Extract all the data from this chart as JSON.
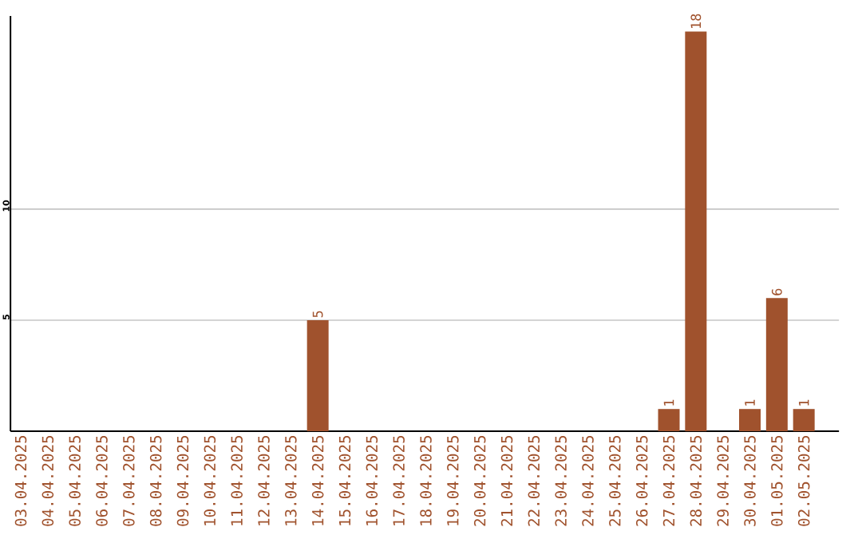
{
  "chart_data": {
    "type": "bar",
    "categories": [
      "03.04.2025",
      "04.04.2025",
      "05.04.2025",
      "06.04.2025",
      "07.04.2025",
      "08.04.2025",
      "09.04.2025",
      "10.04.2025",
      "11.04.2025",
      "12.04.2025",
      "13.04.2025",
      "14.04.2025",
      "15.04.2025",
      "16.04.2025",
      "17.04.2025",
      "18.04.2025",
      "19.04.2025",
      "20.04.2025",
      "21.04.2025",
      "22.04.2025",
      "23.04.2025",
      "24.04.2025",
      "25.04.2025",
      "26.04.2025",
      "27.04.2025",
      "28.04.2025",
      "29.04.2025",
      "30.04.2025",
      "01.05.2025",
      "02.05.2025"
    ],
    "values": [
      0,
      0,
      0,
      0,
      0,
      0,
      0,
      0,
      0,
      0,
      0,
      5,
      0,
      0,
      0,
      0,
      0,
      0,
      0,
      0,
      0,
      0,
      0,
      0,
      1,
      18,
      0,
      1,
      6,
      1
    ],
    "value_labels": [
      null,
      null,
      null,
      null,
      null,
      null,
      null,
      null,
      null,
      null,
      null,
      "5",
      null,
      null,
      null,
      null,
      null,
      null,
      null,
      null,
      null,
      null,
      null,
      null,
      "1",
      "18",
      null,
      "1",
      "6",
      "1"
    ],
    "color": "#a0522d",
    "ylim": [
      0,
      18.7
    ],
    "yticks": [
      5,
      10
    ],
    "grid": "y"
  }
}
